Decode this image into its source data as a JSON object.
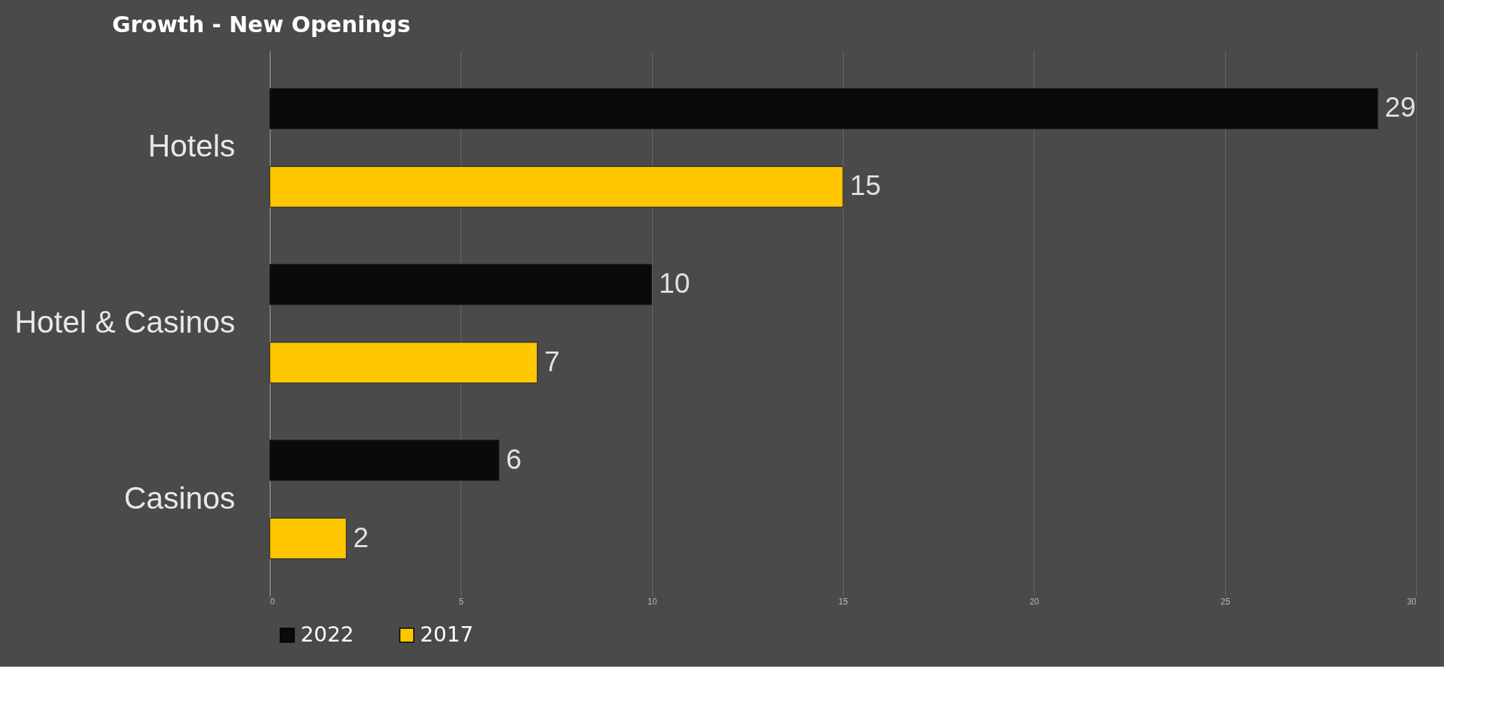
{
  "chart_data": {
    "type": "bar",
    "orientation": "horizontal",
    "title": "Growth - New Openings",
    "categories": [
      "Hotels",
      "Hotel & Casinos",
      "Casinos"
    ],
    "series": [
      {
        "name": "2022",
        "color": "#0a0a0a",
        "values": [
          29,
          10,
          6
        ]
      },
      {
        "name": "2017",
        "color": "#ffc700",
        "values": [
          15,
          7,
          2
        ]
      }
    ],
    "xlim": [
      0,
      30
    ],
    "xticks": [
      0,
      5,
      10,
      15,
      20,
      25,
      30
    ],
    "grid": "x",
    "legend": "bottom",
    "data_labels": true
  }
}
